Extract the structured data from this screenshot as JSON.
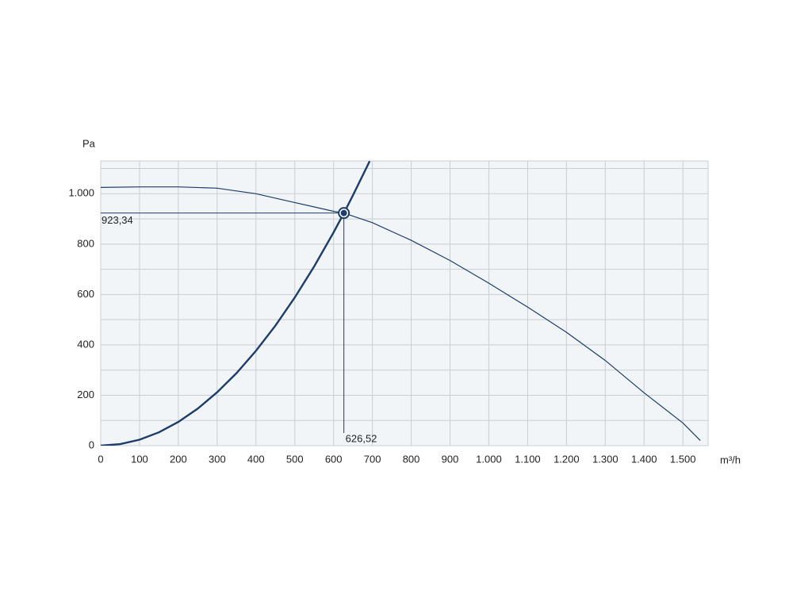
{
  "chart_data": {
    "type": "line",
    "y_label": "Pa",
    "x_label": "m³/h",
    "xlim": [
      0,
      1565
    ],
    "ylim": [
      0,
      1130
    ],
    "xticks": [
      0,
      100,
      200,
      300,
      400,
      500,
      600,
      700,
      800,
      900,
      {
        "value": 1000,
        "label": "1.000"
      },
      {
        "value": 1100,
        "label": "1.100"
      },
      {
        "value": 1200,
        "label": "1.200"
      },
      {
        "value": 1300,
        "label": "1.300"
      },
      {
        "value": 1400,
        "label": "1.400"
      },
      {
        "value": 1500,
        "label": "1.500"
      }
    ],
    "yticks": [
      0,
      200,
      400,
      600,
      800,
      {
        "value": 1000,
        "label": "1.000"
      }
    ],
    "yminorticks": [
      100,
      300,
      500,
      700,
      900,
      1100
    ],
    "grid": true,
    "series": [
      {
        "color": "#1d3c6b",
        "width": 1.2,
        "x": [
          0,
          100,
          200,
          300,
          400,
          500,
          600,
          626.52,
          700,
          800,
          900,
          1000,
          1100,
          1200,
          1300,
          1400,
          1500,
          1545
        ],
        "values": [
          1025,
          1027,
          1027,
          1022,
          1000,
          965,
          930,
          923.34,
          885,
          815,
          735,
          645,
          550,
          450,
          338,
          210,
          90,
          20
        ]
      },
      {
        "color": "#1d3c6b",
        "width": 2.4,
        "x": [
          0,
          50,
          100,
          150,
          200,
          250,
          300,
          350,
          400,
          450,
          500,
          550,
          600,
          626.52,
          650,
          693
        ],
        "values": [
          0,
          5.9,
          23.5,
          52.9,
          94.1,
          147,
          211.7,
          288.1,
          376.3,
          476.3,
          588,
          711.5,
          846.7,
          923.34,
          993.7,
          1129.5
        ]
      }
    ],
    "operating_point": {
      "x": 626.52,
      "y": 923.34,
      "x_label": "626,52",
      "y_label": "923,34",
      "color": "#1d3c6b"
    }
  }
}
